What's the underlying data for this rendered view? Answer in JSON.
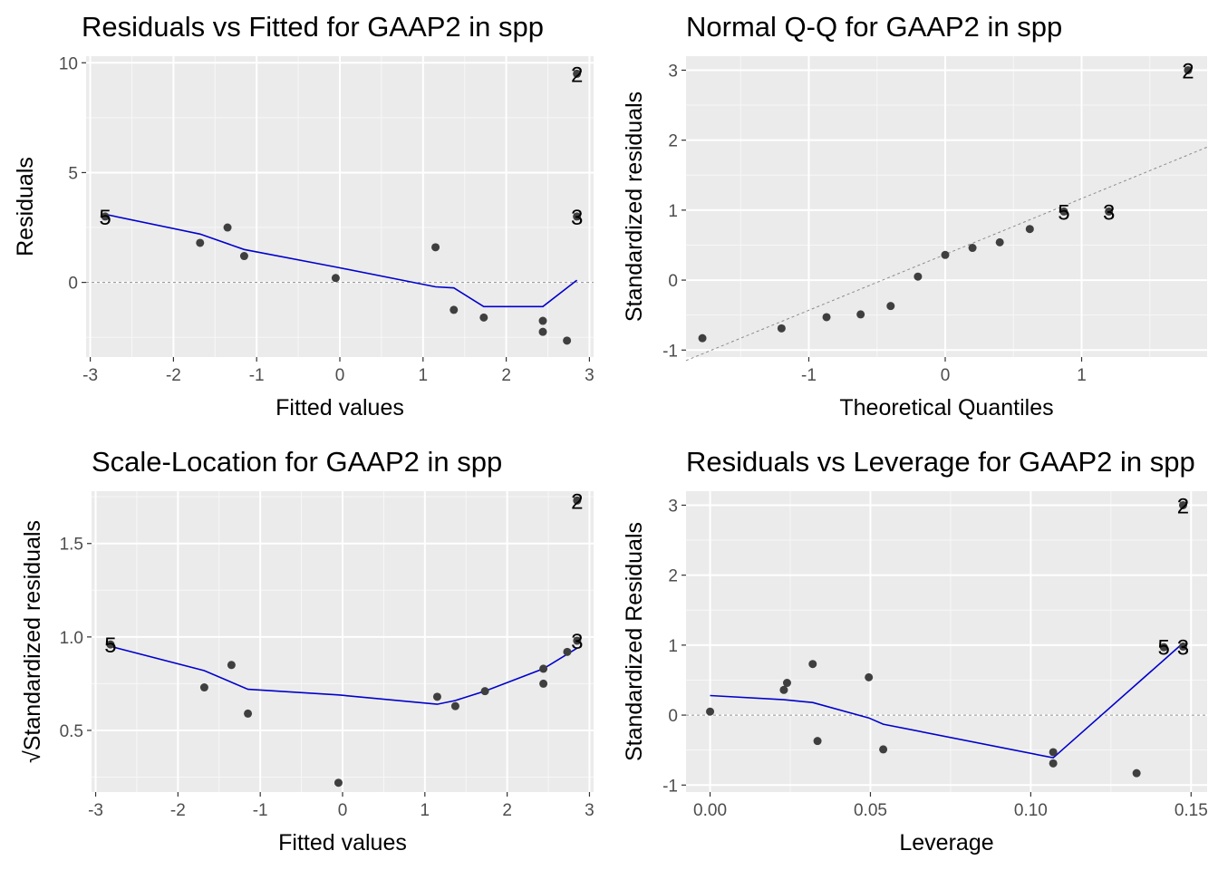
{
  "chart_data": [
    {
      "type": "scatter",
      "title": "Residuals vs Fitted for GAAP2 in spp",
      "xlabel": "Fitted values",
      "ylabel": "Residuals",
      "xlim": [
        -3.05,
        3.05
      ],
      "ylim": [
        -3.4,
        10.3
      ],
      "xticks": [
        -3,
        -2,
        -1,
        0,
        1,
        2,
        3
      ],
      "yticks": [
        0,
        5,
        10
      ],
      "grid": true,
      "refline": {
        "y": 0
      },
      "points": [
        {
          "x": -2.82,
          "y": 3.0
        },
        {
          "x": -1.68,
          "y": 1.8
        },
        {
          "x": -1.35,
          "y": 2.5
        },
        {
          "x": -1.15,
          "y": 1.2
        },
        {
          "x": -0.05,
          "y": 0.2
        },
        {
          "x": 1.15,
          "y": 1.6
        },
        {
          "x": 1.37,
          "y": -1.25
        },
        {
          "x": 1.73,
          "y": -1.6
        },
        {
          "x": 2.44,
          "y": -1.75
        },
        {
          "x": 2.44,
          "y": -2.25
        },
        {
          "x": 2.73,
          "y": -2.65
        },
        {
          "x": 2.85,
          "y": 9.5
        },
        {
          "x": 2.85,
          "y": 3.0
        }
      ],
      "smooth": [
        {
          "x": -2.82,
          "y": 3.1
        },
        {
          "x": -1.68,
          "y": 2.2
        },
        {
          "x": -1.15,
          "y": 1.5
        },
        {
          "x": -0.05,
          "y": 0.7
        },
        {
          "x": 1.15,
          "y": -0.2
        },
        {
          "x": 1.37,
          "y": -0.25
        },
        {
          "x": 1.73,
          "y": -1.1
        },
        {
          "x": 2.44,
          "y": -1.1
        },
        {
          "x": 2.85,
          "y": 0.1
        }
      ],
      "point_labels": [
        {
          "x": -2.82,
          "y": 3.0,
          "text": "5"
        },
        {
          "x": 2.85,
          "y": 9.5,
          "text": "2"
        },
        {
          "x": 2.85,
          "y": 3.0,
          "text": "3"
        }
      ]
    },
    {
      "type": "scatter",
      "title": "Normal Q-Q for GAAP2 in spp",
      "xlabel": "Theoretical Quantiles",
      "ylabel": "Standardized residuals",
      "xlim": [
        -1.9,
        1.92
      ],
      "ylim": [
        -1.1,
        3.2
      ],
      "xticks": [
        -1,
        0,
        1
      ],
      "yticks": [
        -1,
        0,
        1,
        2,
        3
      ],
      "grid": true,
      "refline": {
        "x1": -1.9,
        "y1": -1.15,
        "x2": 1.92,
        "y2": 1.9
      },
      "points": [
        {
          "x": -1.78,
          "y": -0.83
        },
        {
          "x": -1.2,
          "y": -0.69
        },
        {
          "x": -0.87,
          "y": -0.53
        },
        {
          "x": -0.62,
          "y": -0.49
        },
        {
          "x": -0.4,
          "y": -0.37
        },
        {
          "x": -0.2,
          "y": 0.05
        },
        {
          "x": 0.0,
          "y": 0.36
        },
        {
          "x": 0.2,
          "y": 0.46
        },
        {
          "x": 0.4,
          "y": 0.54
        },
        {
          "x": 0.62,
          "y": 0.73
        },
        {
          "x": 0.87,
          "y": 0.98
        },
        {
          "x": 1.2,
          "y": 0.98
        },
        {
          "x": 1.78,
          "y": 3.0
        }
      ],
      "point_labels": [
        {
          "x": 0.87,
          "y": 0.98,
          "text": "5"
        },
        {
          "x": 1.2,
          "y": 0.98,
          "text": "3"
        },
        {
          "x": 1.78,
          "y": 3.0,
          "text": "2"
        }
      ]
    },
    {
      "type": "scatter",
      "title": "Scale-Location for GAAP2 in spp",
      "xlabel": "Fitted values",
      "ylabel": "√Standardized residuals",
      "xlim": [
        -3.05,
        3.05
      ],
      "ylim": [
        0.17,
        1.78
      ],
      "xticks": [
        -3,
        -2,
        -1,
        0,
        1,
        2,
        3
      ],
      "yticks": [
        0.5,
        1.0,
        1.5
      ],
      "grid": true,
      "points": [
        {
          "x": -2.82,
          "y": 0.96
        },
        {
          "x": -1.68,
          "y": 0.73
        },
        {
          "x": -1.35,
          "y": 0.85
        },
        {
          "x": -1.15,
          "y": 0.59
        },
        {
          "x": -0.05,
          "y": 0.22
        },
        {
          "x": 1.15,
          "y": 0.68
        },
        {
          "x": 1.37,
          "y": 0.63
        },
        {
          "x": 1.73,
          "y": 0.71
        },
        {
          "x": 2.44,
          "y": 0.83
        },
        {
          "x": 2.44,
          "y": 0.75
        },
        {
          "x": 2.73,
          "y": 0.92
        },
        {
          "x": 2.85,
          "y": 1.73
        },
        {
          "x": 2.85,
          "y": 0.98
        }
      ],
      "smooth": [
        {
          "x": -2.82,
          "y": 0.95
        },
        {
          "x": -1.68,
          "y": 0.82
        },
        {
          "x": -1.15,
          "y": 0.72
        },
        {
          "x": -0.05,
          "y": 0.69
        },
        {
          "x": 1.15,
          "y": 0.64
        },
        {
          "x": 1.37,
          "y": 0.66
        },
        {
          "x": 1.73,
          "y": 0.71
        },
        {
          "x": 2.44,
          "y": 0.83
        },
        {
          "x": 2.85,
          "y": 0.94
        }
      ],
      "point_labels": [
        {
          "x": -2.82,
          "y": 0.96,
          "text": "5"
        },
        {
          "x": 2.85,
          "y": 1.73,
          "text": "2"
        },
        {
          "x": 2.85,
          "y": 0.98,
          "text": "3"
        }
      ]
    },
    {
      "type": "scatter",
      "title": "Residuals vs Leverage for GAAP2 in spp",
      "xlabel": "Leverage",
      "ylabel": "Standardized Residuals",
      "xlim": [
        -0.0075,
        0.155
      ],
      "ylim": [
        -1.1,
        3.2
      ],
      "xticks": [
        0.0,
        0.05,
        0.1,
        0.15
      ],
      "xtick_labels": [
        "0.00",
        "0.05",
        "0.10",
        "0.15"
      ],
      "yticks": [
        -1,
        0,
        1,
        2,
        3
      ],
      "grid": true,
      "refline": {
        "y": 0
      },
      "points": [
        {
          "x": 0.0,
          "y": 0.05
        },
        {
          "x": 0.023,
          "y": 0.36
        },
        {
          "x": 0.024,
          "y": 0.46
        },
        {
          "x": 0.032,
          "y": 0.73
        },
        {
          "x": 0.0335,
          "y": -0.37
        },
        {
          "x": 0.0495,
          "y": 0.54
        },
        {
          "x": 0.054,
          "y": -0.49
        },
        {
          "x": 0.107,
          "y": -0.53
        },
        {
          "x": 0.107,
          "y": -0.69
        },
        {
          "x": 0.133,
          "y": -0.83
        },
        {
          "x": 0.1415,
          "y": 0.97
        },
        {
          "x": 0.1475,
          "y": 0.98
        },
        {
          "x": 0.1475,
          "y": 3.0
        }
      ],
      "smooth": [
        {
          "x": 0.0,
          "y": 0.28
        },
        {
          "x": 0.023,
          "y": 0.22
        },
        {
          "x": 0.032,
          "y": 0.18
        },
        {
          "x": 0.0495,
          "y": -0.04
        },
        {
          "x": 0.054,
          "y": -0.13
        },
        {
          "x": 0.107,
          "y": -0.61
        },
        {
          "x": 0.1475,
          "y": 1.03
        }
      ],
      "point_labels": [
        {
          "x": 0.1415,
          "y": 0.98,
          "text": "5"
        },
        {
          "x": 0.1475,
          "y": 0.98,
          "text": "3"
        },
        {
          "x": 0.1475,
          "y": 3.0,
          "text": "2"
        }
      ]
    }
  ]
}
